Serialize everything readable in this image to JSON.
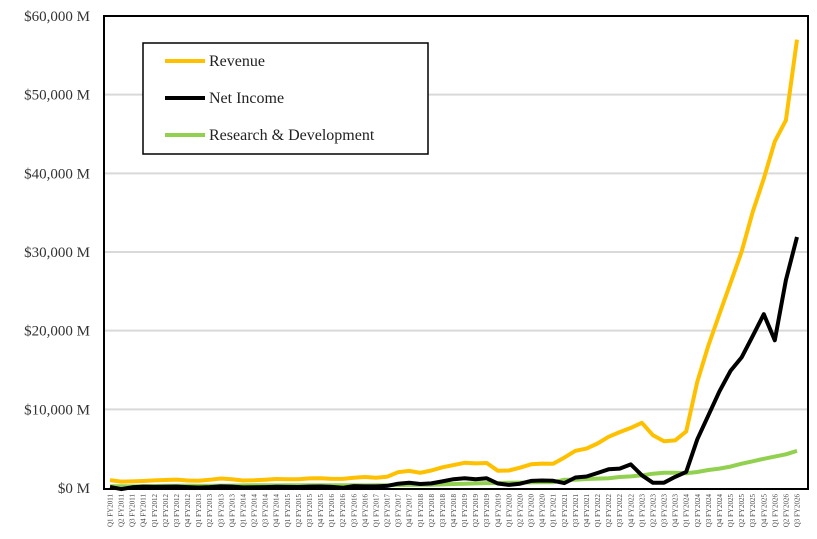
{
  "chart_data": {
    "type": "line",
    "title": "",
    "xlabel": "",
    "ylabel": "",
    "ylim": [
      0,
      60000
    ],
    "yticks": [
      "$0 M",
      "$10,000 M",
      "$20,000 M",
      "$30,000 M",
      "$40,000 M",
      "$50,000 M",
      "$60,000 M"
    ],
    "ytick_values": [
      0,
      10000,
      20000,
      30000,
      40000,
      50000,
      60000
    ],
    "grid": true,
    "legend_position": "top-left",
    "categories": [
      "Q1 FY2011",
      "Q2 FY2011",
      "Q3 FY2011",
      "Q4 FY2011",
      "Q1 FY2012",
      "Q2 FY2012",
      "Q3 FY2012",
      "Q4 FY2012",
      "Q1 FY2013",
      "Q2 FY2013",
      "Q3 FY2013",
      "Q4 FY2013",
      "Q1 FY2014",
      "Q2 FY2014",
      "Q3 FY2014",
      "Q4 FY2014",
      "Q1 FY2015",
      "Q2 FY2015",
      "Q3 FY2015",
      "Q4 FY2015",
      "Q1 FY2016",
      "Q2 FY2016",
      "Q3 FY2016",
      "Q4 FY2016",
      "Q1 FY2017",
      "Q2 FY2017",
      "Q3 FY2017",
      "Q4 FY2017",
      "Q1 FY2018",
      "Q2 FY2018",
      "Q3 FY2018",
      "Q4 FY2018",
      "Q1 FY2019",
      "Q2 FY2019",
      "Q3 FY2019",
      "Q4 FY2019",
      "Q1 FY2020",
      "Q2 FY2020",
      "Q3 FY2020",
      "Q4 FY2020",
      "Q1 FY2021",
      "Q2 FY2021",
      "Q3 FY2021",
      "Q4 FY2021",
      "Q1 FY2022",
      "Q2 FY2022",
      "Q3 FY2022",
      "Q4 FY2022",
      "Q1 FY2023",
      "Q2 FY2023",
      "Q3 FY2023",
      "Q4 FY2023",
      "Q1 FY2024",
      "Q2 FY2024",
      "Q3 FY2024",
      "Q4 FY2024",
      "Q1 FY2025",
      "Q2 FY2025",
      "Q3 FY2025",
      "Q4 FY2025",
      "Q1 FY2026",
      "Q2 FY2026",
      "Q3 FY2026"
    ],
    "series": [
      {
        "name": "Revenue",
        "color": "#FFC000",
        "values": [
          1002,
          811,
          844,
          886,
          962,
          1017,
          1066,
          953,
          924,
          1044,
          1204,
          1107,
          954,
          977,
          1054,
          1144,
          1103,
          1103,
          1225,
          1251,
          1151,
          1153,
          1305,
          1401,
          1305,
          1428,
          2004,
          2173,
          1937,
          2230,
          2636,
          2911,
          3207,
          3123,
          3181,
          2205,
          2220,
          2579,
          3014,
          3105,
          3080,
          3866,
          4726,
          5003,
          5661,
          6507,
          7103,
          7643,
          8288,
          6704,
          5931,
          6051,
          7192,
          13507,
          18120,
          22103,
          26044,
          30040,
          35082,
          39331,
          44062,
          46743,
          57006
        ]
      },
      {
        "name": "Net Income",
        "color": "#000000",
        "values": [
          138,
          -141,
          84,
          172,
          135,
          152,
          178,
          116,
          60,
          119,
          209,
          174,
          78,
          96,
          118,
          147,
          137,
          128,
          173,
          193,
          134,
          26,
          246,
          207,
          208,
          261,
          542,
          655,
          507,
          583,
          838,
          1118,
          1244,
          1101,
          1230,
          567,
          394,
          552,
          899,
          950,
          917,
          622,
          1336,
          1457,
          1912,
          2374,
          2464,
          3003,
          1618,
          656,
          680,
          1414,
          2043,
          6188,
          9243,
          12285,
          14881,
          16599,
          19309,
          22091,
          18775,
          26422,
          31910
        ]
      },
      {
        "name": "Research & Development",
        "color": "#92D050",
        "values": [
          210,
          212,
          208,
          215,
          260,
          280,
          290,
          310,
          290,
          290,
          300,
          310,
          330,
          340,
          340,
          330,
          340,
          340,
          340,
          340,
          350,
          340,
          340,
          330,
          350,
          360,
          380,
          400,
          410,
          420,
          460,
          510,
          540,
          580,
          620,
          620,
          660,
          690,
          710,
          740,
          730,
          1050,
          1050,
          1150,
          1200,
          1250,
          1400,
          1470,
          1620,
          1820,
          1950,
          1950,
          1880,
          2040,
          2290,
          2470,
          2720,
          3090,
          3390,
          3710,
          3990,
          4290,
          4710
        ]
      }
    ]
  }
}
